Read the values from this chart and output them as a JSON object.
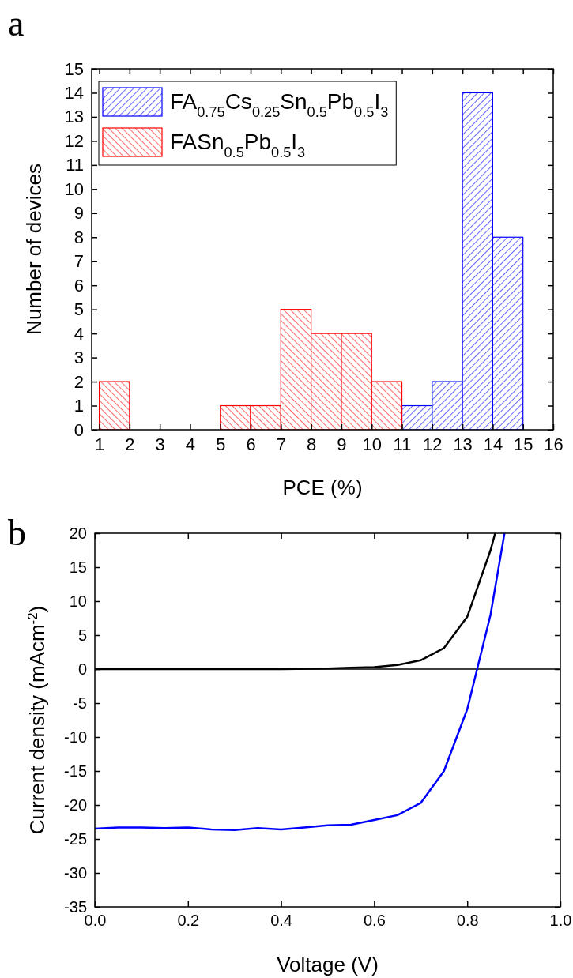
{
  "chart_data": [
    {
      "type": "bar",
      "ylabel": "Number of devices",
      "xlabel": "PCE (%)",
      "annotations": [
        "a"
      ],
      "x": [
        1.5,
        2.5,
        3.5,
        4.5,
        5.5,
        6.5,
        7.5,
        8.5,
        9.5,
        10.5,
        11.5,
        12.5,
        13.5,
        14.5
      ],
      "series": [
        {
          "name": "FA$_{0.75}$Cs$_{0.25}$Sn$_{0.5}$Pb$_{0.5}$I$_{3}$",
          "color": "#0000ff",
          "values": [
            null,
            null,
            null,
            null,
            null,
            null,
            null,
            null,
            null,
            null,
            1,
            2,
            14,
            8
          ]
        },
        {
          "name": "FASn$_{0.5}$Pb$_{0.5}$I$_{3}$",
          "color": "#ff0000",
          "values": [
            2,
            null,
            null,
            null,
            1,
            1,
            5,
            4,
            4,
            2,
            null,
            null,
            null,
            null
          ]
        }
      ],
      "xlim": [
        0.75,
        16
      ],
      "xticks": [
        1,
        2,
        3,
        4,
        5,
        6,
        7,
        8,
        9,
        10,
        11,
        12,
        13,
        14,
        15,
        16
      ],
      "ylim": [
        0,
        15
      ],
      "yticks": [
        0,
        1,
        2,
        3,
        4,
        5,
        6,
        7,
        8,
        9,
        10,
        11,
        12,
        13,
        14,
        15
      ],
      "legend": "top left",
      "grid": false
    },
    {
      "type": "line",
      "xlabel": "Voltage (V)",
      "ylabel": "Current density (mAcm$^{-2}$)",
      "annotations": [
        "b"
      ],
      "series": [
        {
          "color": "#000000",
          "x": [
            0,
            0.1,
            0.2,
            0.3,
            0.4,
            0.5,
            0.55,
            0.6,
            0.65,
            0.7,
            0.75,
            0.8,
            0.85,
            0.86
          ],
          "values": [
            0,
            0,
            0,
            0,
            0,
            0.1,
            0.2,
            0.3,
            0.6,
            1.3,
            3.1,
            7.7,
            17.5,
            20
          ]
        },
        {
          "color": "#0000ff",
          "x": [
            0,
            0.05,
            0.1,
            0.15,
            0.2,
            0.25,
            0.3,
            0.35,
            0.4,
            0.45,
            0.5,
            0.55,
            0.6,
            0.65,
            0.7,
            0.75,
            0.8,
            0.85,
            0.88
          ],
          "values": [
            -23.5,
            -23.3,
            -23.3,
            -23.4,
            -23.3,
            -23.6,
            -23.7,
            -23.4,
            -23.6,
            -23.3,
            -23.0,
            -22.9,
            -22.2,
            -21.5,
            -19.7,
            -15.0,
            -5.9,
            8.0,
            20
          ]
        }
      ],
      "ref_lines": [
        {
          "axis": "y",
          "value": 0,
          "color": "#000000"
        }
      ],
      "xlim": [
        0,
        1
      ],
      "xticks": [
        {
          "value": 0,
          "label": "0.0"
        },
        {
          "value": 0.2,
          "label": "0.2"
        },
        {
          "value": 0.4,
          "label": "0.4"
        },
        {
          "value": 0.6,
          "label": "0.6"
        },
        {
          "value": 0.8,
          "label": "0.8"
        },
        {
          "value": 1,
          "label": "1.0"
        }
      ],
      "ylim": [
        -35,
        20
      ],
      "yticks": [
        -35,
        -30,
        -25,
        -20,
        -15,
        -10,
        -5,
        0,
        5,
        10,
        15,
        20
      ],
      "grid": false,
      "marker": "none",
      "line_style": "solid"
    }
  ]
}
